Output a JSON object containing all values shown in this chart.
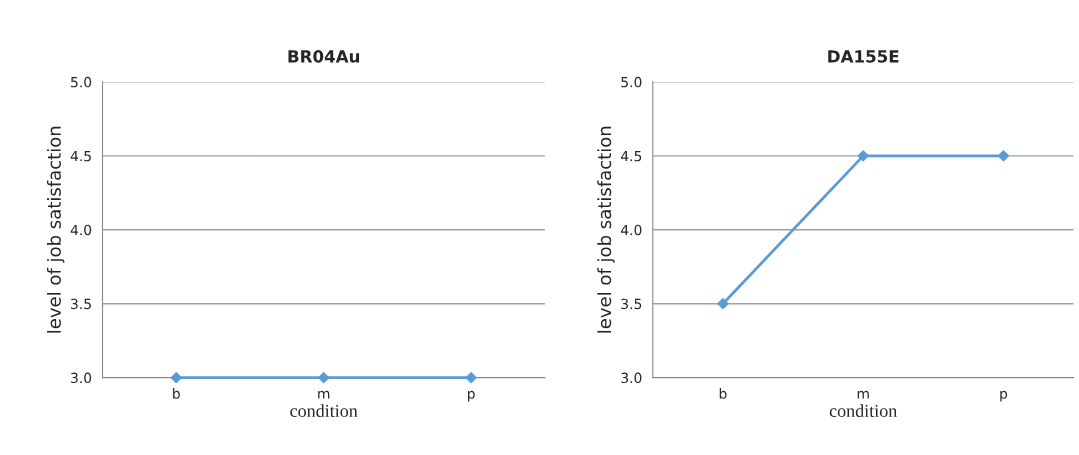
{
  "chart_data": [
    {
      "type": "line",
      "title": "BR04Au",
      "xlabel": "condition",
      "ylabel": "level of job satisfaction",
      "categories": [
        "b",
        "m",
        "p"
      ],
      "series": [
        {
          "color": "#5b9bd5",
          "values": [
            3.0,
            3.0,
            3.0
          ]
        }
      ],
      "ylim": [
        3.0,
        5.0
      ],
      "yticks": [
        {
          "value": 3.0,
          "label": "3.0"
        },
        {
          "value": 3.5,
          "label": "3.5"
        },
        {
          "value": 4.0,
          "label": "4.0"
        },
        {
          "value": 4.5,
          "label": "4.5"
        },
        {
          "value": 5.0,
          "label": "5.0"
        }
      ],
      "grid": "y",
      "marker": "diamond",
      "legend": false
    },
    {
      "type": "line",
      "title": "DA155E",
      "xlabel": "condition",
      "ylabel": "level of job satisfaction",
      "categories": [
        "b",
        "m",
        "p"
      ],
      "series": [
        {
          "color": "#5b9bd5",
          "values": [
            3.5,
            4.5,
            4.5
          ]
        }
      ],
      "ylim": [
        3.0,
        5.0
      ],
      "yticks": [
        {
          "value": 3.0,
          "label": "3.0"
        },
        {
          "value": 3.5,
          "label": "3.5"
        },
        {
          "value": 4.0,
          "label": "4.0"
        },
        {
          "value": 4.5,
          "label": "4.5"
        },
        {
          "value": 5.0,
          "label": "5.0"
        }
      ],
      "grid": "y",
      "marker": "diamond",
      "legend": false
    }
  ]
}
